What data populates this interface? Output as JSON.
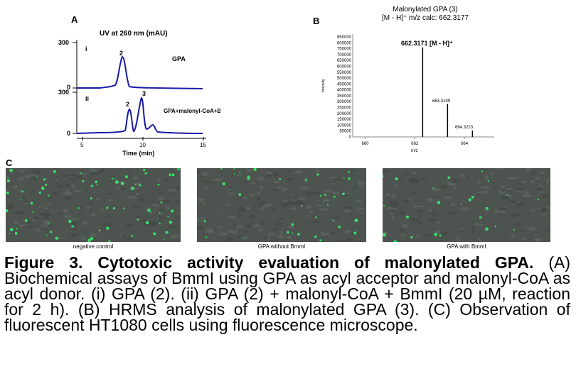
{
  "panel_a": {
    "letter": "A",
    "title": "UV at 260 nm (mAU)",
    "trace_i": {
      "roman": "i",
      "label": "GPA",
      "peak_label": "2",
      "ytick_top": "300",
      "ytick_bottom": "0"
    },
    "trace_ii": {
      "roman": "ii",
      "label": "GPA+malonyl-CoA+BmmI",
      "peak_labels": [
        "2",
        "3"
      ],
      "ytick_top": "300",
      "ytick_bottom": "0"
    },
    "xticks": [
      "5",
      "10",
      "15"
    ],
    "xlabel": "Time (min)",
    "line_color": "#1a1aa8"
  },
  "panel_b": {
    "letter": "B",
    "title_line1": "Malonylated GPA (3)",
    "title_line2": "[M - H]⁺   m/z calc: 662.3177",
    "ylabel": "Intensity",
    "xlabel": "m/z",
    "yticks": [
      "850000",
      "800000",
      "750000",
      "700000",
      "650000",
      "600000",
      "550000",
      "500000",
      "450000",
      "400000",
      "350000",
      "300000",
      "250000",
      "200000",
      "150000",
      "100000",
      "50000",
      "0"
    ],
    "xticks": [
      "660",
      "662",
      "664"
    ],
    "peak_main_label": "662.3171  [M - H]⁺",
    "peak2_label": "663.3199",
    "peak3_label": "664.3223",
    "chart_data": {
      "type": "bar",
      "x": [
        662.3171,
        663.3199,
        664.3223
      ],
      "values": [
        760000,
        280000,
        55000
      ],
      "xlim": [
        659.5,
        665.2
      ],
      "ylim": [
        0,
        850000
      ]
    }
  },
  "panel_c": {
    "letter": "C",
    "images": [
      {
        "label": "negative control"
      },
      {
        "label": "GPA without BmmI"
      },
      {
        "label": "GPA with BmmI"
      }
    ]
  },
  "caption": {
    "figure_label": "Figure 3. Cytotoxic activity evaluation of malonylated GPA.",
    "text": " (A) Biochemical assays of BmmI using GPA as acyl acceptor and malonyl-CoA as acyl donor. (i) GPA (2). (ii) GPA (2) + malonyl-CoA + BmmI (20 µM, reaction for 2 h). (B) HRMS analysis of malonylated GPA (3). (C) Observation of fluorescent HT1080 cells using fluorescence microscope."
  }
}
